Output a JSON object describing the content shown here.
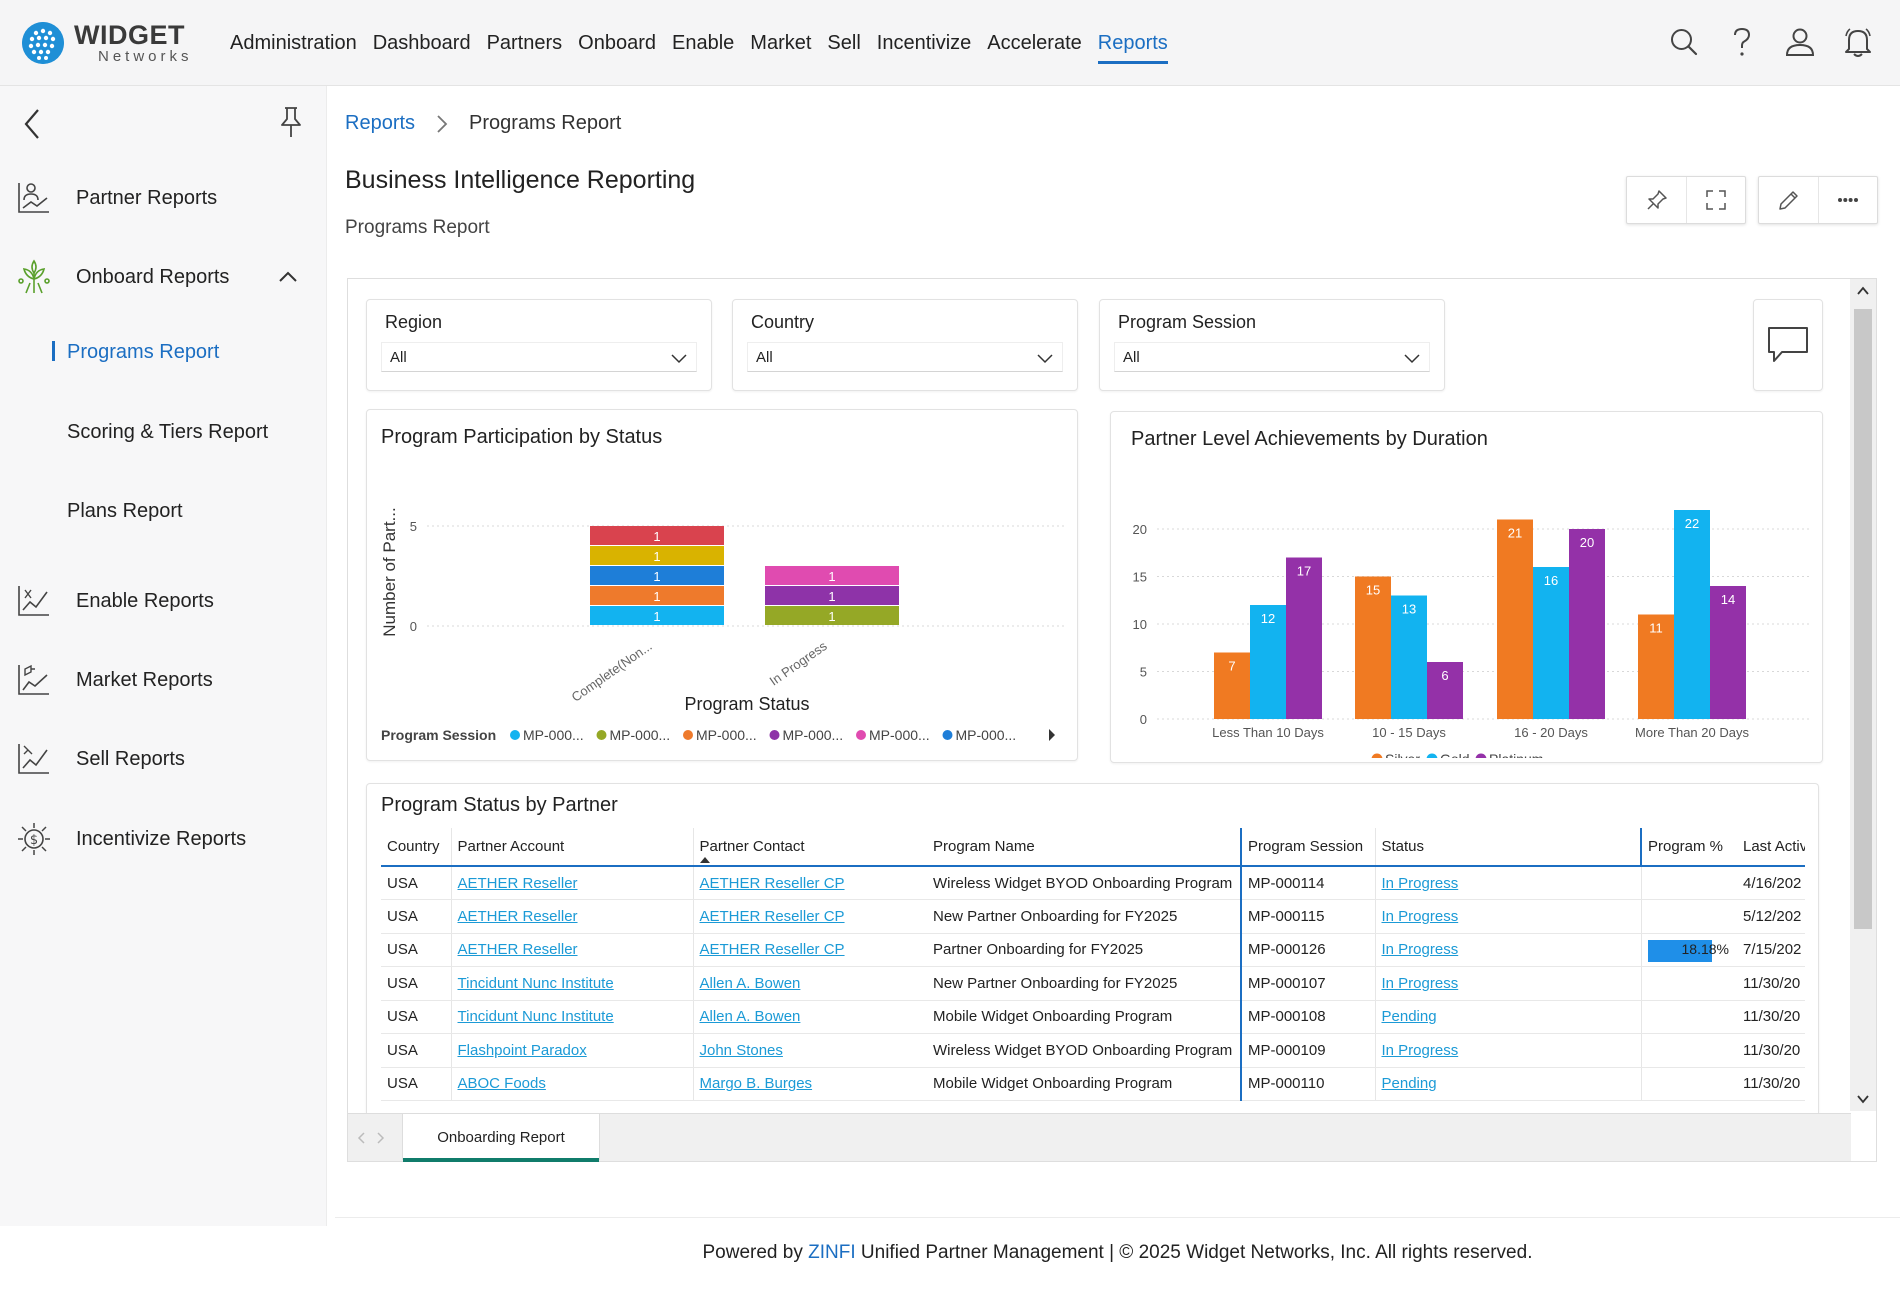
{
  "brand": {
    "name": "WIDGET",
    "sub": "Networks"
  },
  "nav": {
    "items": [
      "Administration",
      "Dashboard",
      "Partners",
      "Onboard",
      "Enable",
      "Market",
      "Sell",
      "Incentivize",
      "Accelerate",
      "Reports"
    ],
    "active": "Reports"
  },
  "sidebar": {
    "items": {
      "partner": "Partner Reports",
      "onboard": "Onboard Reports",
      "programs": "Programs Report",
      "scoring": "Scoring & Tiers Report",
      "plans": "Plans Report",
      "enable": "Enable Reports",
      "market": "Market Reports",
      "sell": "Sell Reports",
      "incentivize": "Incentivize Reports"
    }
  },
  "breadcrumb": {
    "root": "Reports",
    "current": "Programs Report"
  },
  "page": {
    "title": "Business Intelligence Reporting",
    "subtitle": "Programs Report"
  },
  "filters": {
    "region": {
      "label": "Region",
      "value": "All"
    },
    "country": {
      "label": "Country",
      "value": "All"
    },
    "session": {
      "label": "Program Session",
      "value": "All"
    }
  },
  "chart_data": [
    {
      "type": "bar",
      "stacked": true,
      "title": "Program Participation by Status",
      "xlabel": "Program Status",
      "ylabel": "Number of Part...",
      "categories": [
        "Complete(Non...",
        "In Progress"
      ],
      "ylim": [
        0,
        5
      ],
      "yticks": [
        0,
        5
      ],
      "legend_title": "Program Session",
      "legend": [
        "MP-000...",
        "MP-000...",
        "MP-000...",
        "MP-000...",
        "MP-000...",
        "MP-000..."
      ],
      "series": [
        {
          "color": "#12b3f0",
          "values": [
            1,
            0
          ]
        },
        {
          "color": "#95a826",
          "values": [
            0,
            1
          ]
        },
        {
          "color": "#ee7a2c",
          "values": [
            1,
            0
          ]
        },
        {
          "color": "#8e33a8",
          "values": [
            0,
            1
          ]
        },
        {
          "color": "#e04bb0",
          "values": [
            0,
            1
          ]
        },
        {
          "color": "#1e7ed8",
          "values": [
            1,
            0
          ]
        },
        {
          "color": "#d9b300",
          "values": [
            1,
            0
          ]
        },
        {
          "color": "#d9434e",
          "values": [
            1,
            0
          ]
        }
      ]
    },
    {
      "type": "bar",
      "title": "Partner Level Achievements by Duration",
      "categories": [
        "Less Than 10 Days",
        "10 - 15 Days",
        "16 - 20 Days",
        "More Than 20 Days"
      ],
      "ylim": [
        0,
        22
      ],
      "yticks": [
        0,
        5,
        10,
        15,
        20
      ],
      "series": [
        {
          "name": "Silver",
          "color": "#f07a22",
          "values": [
            7,
            15,
            21,
            11
          ]
        },
        {
          "name": "Gold",
          "color": "#12b3f0",
          "values": [
            12,
            13,
            16,
            22
          ]
        },
        {
          "name": "Platinum",
          "color": "#9431a8",
          "values": [
            17,
            6,
            20,
            14
          ]
        }
      ]
    }
  ],
  "table": {
    "title": "Program Status by Partner",
    "columns": [
      "Country",
      "Partner Account",
      "Partner Contact",
      "Program Name",
      "Program Session",
      "Status",
      "Program %",
      "Last Activi"
    ],
    "rows": [
      {
        "country": "USA",
        "account": "AETHER Reseller",
        "contact": "AETHER Reseller CP",
        "program": "Wireless Widget BYOD Onboarding Program",
        "session": "MP-000114",
        "status": "In Progress",
        "pct": "",
        "last": "4/16/202"
      },
      {
        "country": "USA",
        "account": "AETHER Reseller",
        "contact": "AETHER Reseller CP",
        "program": "New Partner Onboarding for FY2025",
        "session": "MP-000115",
        "status": "In Progress",
        "pct": "",
        "last": "5/12/202"
      },
      {
        "country": "USA",
        "account": "AETHER Reseller",
        "contact": "AETHER Reseller CP",
        "program": "Partner Onboarding for FY2025",
        "session": "MP-000126",
        "status": "In Progress",
        "pct": "18.18%",
        "last": "7/15/202"
      },
      {
        "country": "USA",
        "account": "Tincidunt Nunc Institute",
        "contact": "Allen A. Bowen",
        "program": "New Partner Onboarding for FY2025",
        "session": "MP-000107",
        "status": "In Progress",
        "pct": "",
        "last": "11/30/20"
      },
      {
        "country": "USA",
        "account": "Tincidunt Nunc Institute",
        "contact": "Allen A. Bowen",
        "program": "Mobile Widget Onboarding Program",
        "session": "MP-000108",
        "status": "Pending",
        "pct": "",
        "last": "11/30/20"
      },
      {
        "country": "USA",
        "account": "Flashpoint Paradox",
        "contact": "John Stones",
        "program": "Wireless Widget BYOD Onboarding Program",
        "session": "MP-000109",
        "status": "In Progress",
        "pct": "",
        "last": "11/30/20"
      },
      {
        "country": "USA",
        "account": "ABOC Foods",
        "contact": "Margo B. Burges",
        "program": "Mobile Widget Onboarding Program",
        "session": "MP-000110",
        "status": "Pending",
        "pct": "",
        "last": "11/30/20"
      }
    ],
    "pct_fraction": 0.1818
  },
  "tabs": {
    "active": "Onboarding Report"
  },
  "footer": {
    "pre": "Powered by ",
    "brand": "ZINFI",
    "post": " Unified Partner Management | © 2025 Widget Networks, Inc. All rights reserved."
  },
  "colors": {
    "accent": "#1b6ec2",
    "link": "#1b9ad6",
    "tab_underline": "#107c6b"
  }
}
